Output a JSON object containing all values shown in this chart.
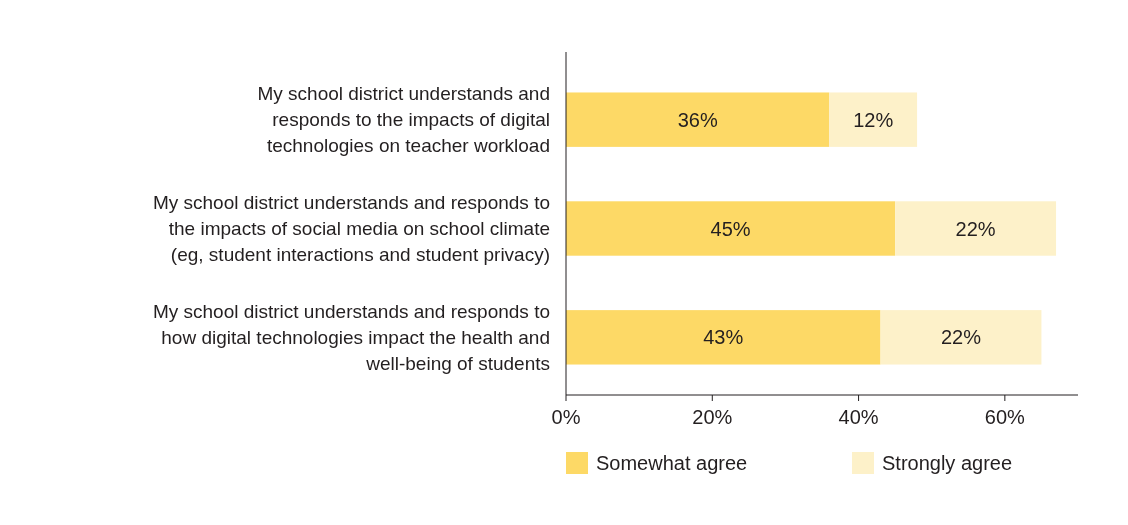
{
  "chart_data": {
    "type": "bar",
    "orientation": "horizontal",
    "stacked": true,
    "categories": [
      "My school district understands and\nresponds to the impacts of digital\ntechnologies on teacher workload",
      "My school district understands and responds to\nthe impacts of social media on school climate\n(eg,  student interactions and student privacy)",
      "My school district understands and responds to\nhow digital technologies impact the health and\nwell-being of students"
    ],
    "series": [
      {
        "name": "Somewhat agree",
        "color": "#fdd966",
        "values": [
          36,
          45,
          43
        ],
        "value_labels": [
          "36%",
          "45%",
          "43%"
        ]
      },
      {
        "name": "Strongly agree",
        "color": "#fdf1c9",
        "values": [
          12,
          22,
          22
        ],
        "value_labels": [
          "12%",
          "22%",
          "22%"
        ]
      }
    ],
    "xlim": [
      0,
      70
    ],
    "xticks": [
      {
        "value": 0,
        "label": "0%"
      },
      {
        "value": 20,
        "label": "20%"
      },
      {
        "value": 40,
        "label": "40%"
      },
      {
        "value": 60,
        "label": "60%"
      }
    ],
    "legend": "bottom",
    "grid": false
  }
}
